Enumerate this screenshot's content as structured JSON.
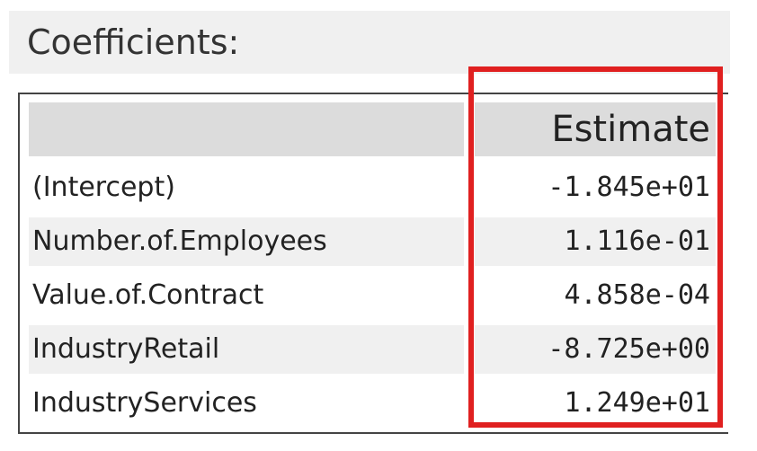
{
  "header": {
    "title": "Coefficients:"
  },
  "table": {
    "column_header": "Estimate",
    "rows": [
      {
        "name": "(Intercept)",
        "estimate": "-1.845e+01"
      },
      {
        "name": "Number.of.Employees",
        "estimate": "1.116e-01"
      },
      {
        "name": "Value.of.Contract",
        "estimate": "4.858e-04"
      },
      {
        "name": "IndustryRetail",
        "estimate": "-8.725e+00"
      },
      {
        "name": "IndustryServices",
        "estimate": "1.249e+01"
      }
    ]
  },
  "colors": {
    "highlight": "#e02020",
    "header_bg": "#f0f0f0",
    "column_header_bg": "#dcdcdc",
    "shaded_row_bg": "#f0f0f0"
  }
}
